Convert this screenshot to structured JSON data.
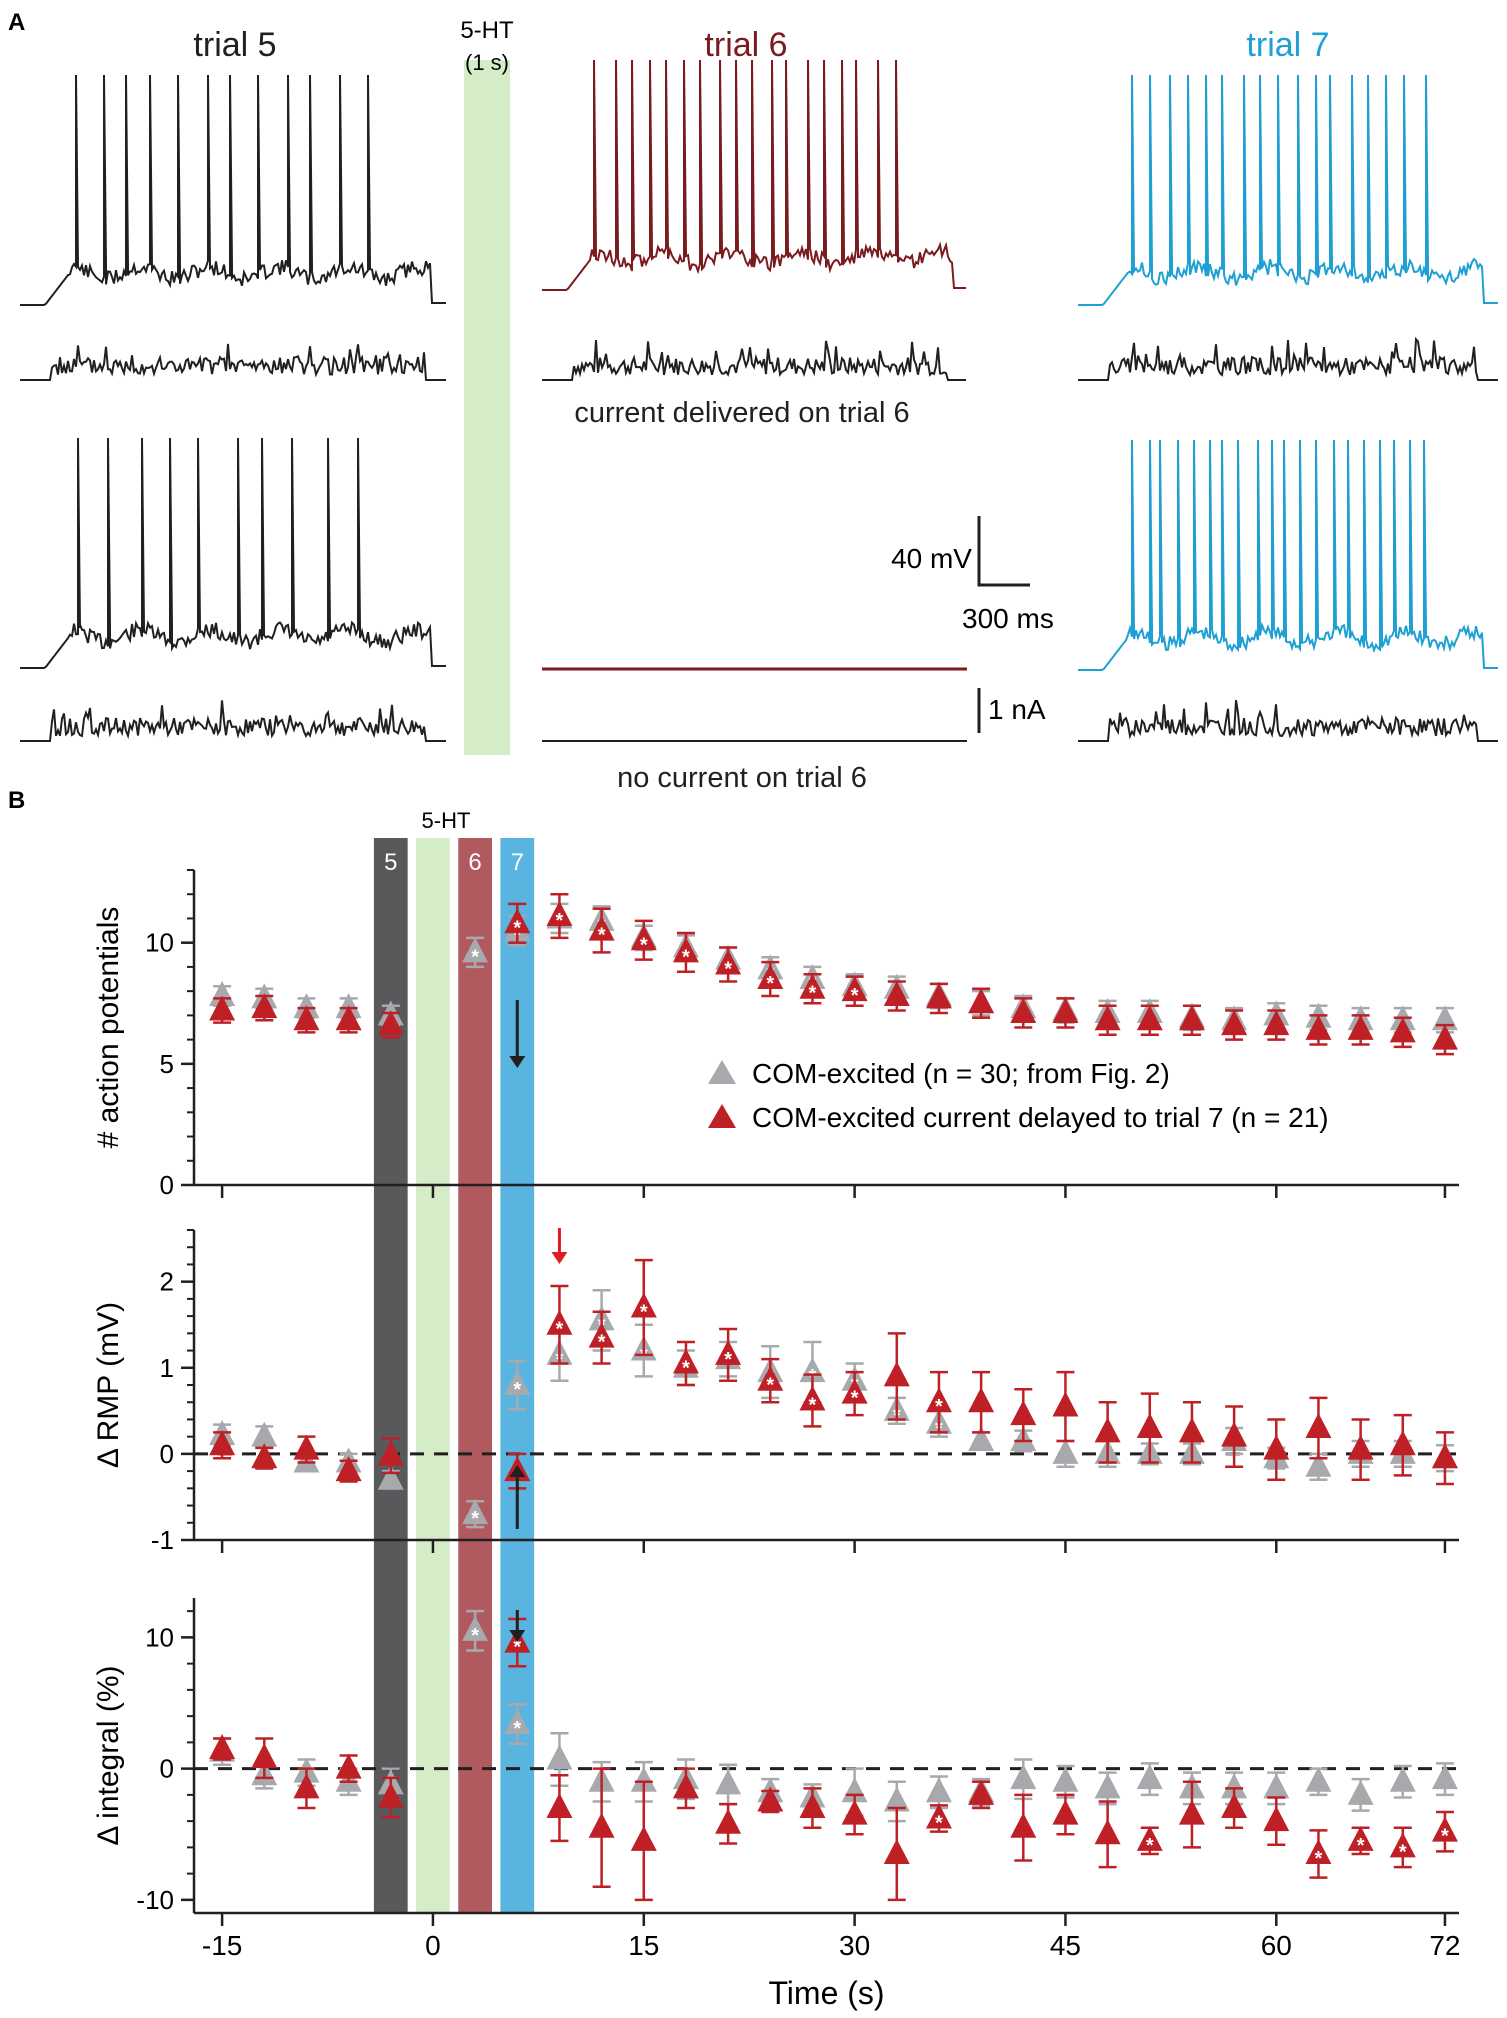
{
  "panelA": {
    "label": "A",
    "trial5_title": "trial 5",
    "trial6_title": "trial 6",
    "trial7_title": "trial 7",
    "drug_label": "5-HT",
    "drug_duration": "(1 s)",
    "caption_top": "current delivered on trial 6",
    "caption_bottom": "no current on trial 6",
    "scale_voltage": "40 mV",
    "scale_time": "300 ms",
    "scale_current": "1 nA",
    "spike_counts": {
      "trial5_top": 12,
      "trial6_top": 18,
      "trial7_top": 17,
      "trial5_bottom": 10,
      "trial7_bottom": 20
    },
    "colors": {
      "trial5": "#231f20",
      "trial6": "#7b1a1f",
      "trial7": "#1ea0d4",
      "drug": "#d4ecc8",
      "current": "#231f20"
    }
  },
  "panelB": {
    "label": "B",
    "drug_label": "5-HT",
    "bar_labels": [
      "5",
      "6",
      "7"
    ],
    "colors": {
      "grey_series": "#a7a9ac",
      "red_series": "#be2026",
      "bar5": "#58595b",
      "bar6": "#b05a60",
      "bar7": "#5ab4e0",
      "drug": "#d4ecc8",
      "red_arrow": "#e21b23",
      "black_arrow": "#231f20"
    }
  },
  "chart_data": [
    {
      "type": "scatter",
      "title": "",
      "xlabel": "Time (s)",
      "ylabel": "# action potentials",
      "xlim": [
        -17,
        73
      ],
      "ylim": [
        0,
        13
      ],
      "yticks": [
        0,
        5,
        10
      ],
      "xticks": [
        -15,
        0,
        15,
        30,
        45,
        60,
        72
      ],
      "legend": [
        "COM-excited (n = 30; from Fig. 2)",
        "COM-excited current delayed to trial 7 (n = 21)"
      ],
      "legend_position": "center-right",
      "series": [
        {
          "name": "COM-excited (n = 30; from Fig. 2)",
          "x": [
            -15,
            -12,
            -9,
            -6,
            -3,
            3,
            6,
            9,
            12,
            15,
            18,
            21,
            24,
            27,
            30,
            33,
            36,
            39,
            42,
            45,
            48,
            51,
            54,
            57,
            60,
            63,
            66,
            69,
            72
          ],
          "y": [
            7.8,
            7.7,
            7.3,
            7.3,
            7.0,
            9.6,
            10.5,
            11.0,
            10.9,
            10.2,
            9.8,
            9.3,
            8.9,
            8.5,
            8.2,
            8.1,
            7.8,
            7.5,
            7.3,
            7.2,
            7.1,
            7.1,
            6.9,
            6.8,
            7.0,
            6.9,
            6.8,
            6.8,
            6.8
          ],
          "err": [
            0.4,
            0.4,
            0.4,
            0.4,
            0.4,
            0.6,
            0.6,
            0.6,
            0.6,
            0.5,
            0.5,
            0.5,
            0.5,
            0.5,
            0.5,
            0.5,
            0.5,
            0.5,
            0.5,
            0.5,
            0.5,
            0.5,
            0.5,
            0.5,
            0.5,
            0.5,
            0.5,
            0.5,
            0.5
          ],
          "significant_x": [
            3,
            6,
            9,
            12,
            15,
            18,
            21,
            24,
            27,
            30
          ]
        },
        {
          "name": "COM-excited current delayed to trial 7 (n = 21)",
          "x": [
            -15,
            -12,
            -9,
            -6,
            -3,
            6,
            9,
            12,
            15,
            18,
            21,
            24,
            27,
            30,
            33,
            36,
            39,
            42,
            45,
            48,
            51,
            54,
            57,
            60,
            63,
            66,
            69,
            72
          ],
          "y": [
            7.2,
            7.3,
            6.8,
            6.8,
            6.6,
            10.8,
            11.1,
            10.5,
            10.1,
            9.6,
            9.1,
            8.5,
            8.1,
            8.0,
            7.8,
            7.7,
            7.5,
            7.1,
            7.1,
            6.8,
            6.8,
            6.8,
            6.6,
            6.6,
            6.4,
            6.4,
            6.3,
            6.0
          ],
          "err": [
            0.5,
            0.5,
            0.5,
            0.5,
            0.5,
            0.8,
            0.9,
            0.9,
            0.8,
            0.8,
            0.7,
            0.7,
            0.6,
            0.6,
            0.6,
            0.6,
            0.6,
            0.6,
            0.6,
            0.6,
            0.6,
            0.6,
            0.6,
            0.6,
            0.6,
            0.6,
            0.6,
            0.6
          ],
          "significant_x": [
            6,
            9,
            12,
            15,
            18,
            21,
            24,
            27,
            30
          ]
        }
      ]
    },
    {
      "type": "scatter",
      "title": "",
      "xlabel": "Time (s)",
      "ylabel": "Δ RMP (mV)",
      "xlim": [
        -17,
        73
      ],
      "ylim": [
        -1,
        2.6
      ],
      "yticks": [
        -1,
        0,
        1,
        2
      ],
      "xticks": [
        -15,
        0,
        15,
        30,
        45,
        60,
        72
      ],
      "reference_line": 0,
      "series": [
        {
          "name": "COM-excited (n = 30; from Fig. 2)",
          "x": [
            -15,
            -12,
            -9,
            -6,
            -3,
            3,
            6,
            9,
            12,
            15,
            18,
            21,
            24,
            27,
            30,
            33,
            36,
            39,
            42,
            45,
            48,
            51,
            54,
            57,
            60,
            63,
            66,
            69,
            72
          ],
          "y": [
            0.22,
            0.2,
            -0.1,
            -0.1,
            -0.3,
            -0.7,
            0.8,
            1.15,
            1.55,
            1.2,
            1.0,
            1.1,
            0.95,
            0.95,
            0.85,
            0.5,
            0.35,
            0.15,
            0.15,
            0.0,
            0.0,
            0.0,
            0.0,
            0.15,
            -0.05,
            -0.15,
            0.0,
            0.0,
            -0.05
          ],
          "err": [
            0.12,
            0.12,
            0.1,
            0.1,
            0.1,
            0.15,
            0.28,
            0.3,
            0.35,
            0.3,
            0.2,
            0.2,
            0.3,
            0.35,
            0.2,
            0.15,
            0.15,
            0.1,
            0.12,
            0.15,
            0.15,
            0.12,
            0.12,
            0.15,
            0.12,
            0.15,
            0.15,
            0.15,
            0.15
          ],
          "significant_x": [
            3,
            6,
            9,
            12,
            15,
            18,
            21,
            24,
            27,
            30,
            33,
            36
          ]
        },
        {
          "name": "COM-excited current delayed to trial 7 (n = 21)",
          "x": [
            -15,
            -12,
            -9,
            -6,
            -3,
            6,
            9,
            12,
            15,
            18,
            21,
            24,
            27,
            30,
            33,
            36,
            39,
            42,
            45,
            48,
            51,
            54,
            57,
            60,
            63,
            66,
            69,
            72
          ],
          "y": [
            0.1,
            -0.05,
            0.05,
            -0.2,
            -0.02,
            -0.2,
            1.5,
            1.35,
            1.7,
            1.05,
            1.15,
            0.85,
            0.62,
            0.7,
            0.9,
            0.6,
            0.6,
            0.45,
            0.55,
            0.25,
            0.3,
            0.25,
            0.2,
            0.05,
            0.3,
            0.05,
            0.1,
            -0.05
          ],
          "err": [
            0.15,
            0.12,
            0.15,
            0.12,
            0.2,
            0.2,
            0.45,
            0.3,
            0.55,
            0.25,
            0.3,
            0.25,
            0.3,
            0.25,
            0.5,
            0.35,
            0.35,
            0.3,
            0.4,
            0.35,
            0.4,
            0.35,
            0.35,
            0.35,
            0.35,
            0.35,
            0.35,
            0.3
          ],
          "significant_x": [
            9,
            12,
            15,
            18,
            21,
            24,
            27,
            30,
            36
          ]
        }
      ]
    },
    {
      "type": "scatter",
      "title": "",
      "xlabel": "Time (s)",
      "ylabel": "Δ integral (%)",
      "xlim": [
        -17,
        73
      ],
      "ylim": [
        -11,
        13
      ],
      "yticks": [
        -10,
        0,
        10
      ],
      "xticks": [
        -15,
        0,
        15,
        30,
        45,
        60,
        72
      ],
      "reference_line": 0,
      "series": [
        {
          "name": "COM-excited (n = 30; from Fig. 2)",
          "x": [
            -15,
            -12,
            -9,
            -6,
            -3,
            3,
            6,
            9,
            12,
            15,
            18,
            21,
            24,
            27,
            30,
            33,
            36,
            39,
            42,
            45,
            48,
            51,
            54,
            57,
            60,
            63,
            66,
            69,
            72
          ],
          "y": [
            1.3,
            -0.5,
            -0.3,
            -1.0,
            -1.2,
            10.5,
            3.4,
            0.7,
            -1.0,
            -1.0,
            -0.8,
            -1.2,
            -1.8,
            -2.2,
            -1.8,
            -2.5,
            -1.8,
            -1.8,
            -0.8,
            -1.0,
            -1.5,
            -0.8,
            -1.5,
            -1.5,
            -1.5,
            -1.0,
            -2.0,
            -1.0,
            -0.8
          ],
          "err": [
            1.0,
            1.0,
            1.0,
            1.0,
            1.2,
            1.5,
            1.5,
            2.0,
            1.5,
            1.5,
            1.5,
            1.5,
            1.0,
            1.0,
            1.8,
            1.5,
            1.2,
            1.0,
            1.5,
            1.2,
            1.2,
            1.2,
            1.2,
            1.2,
            1.2,
            1.0,
            1.2,
            1.2,
            1.2
          ],
          "significant_x": [
            3,
            6
          ]
        },
        {
          "name": "COM-excited current delayed to trial 7 (n = 21)",
          "x": [
            -15,
            -12,
            -9,
            -6,
            -3,
            6,
            9,
            12,
            15,
            18,
            21,
            24,
            27,
            30,
            33,
            36,
            39,
            42,
            45,
            48,
            51,
            54,
            57,
            60,
            63,
            66,
            69,
            72
          ],
          "y": [
            1.5,
            0.8,
            -1.5,
            0.0,
            -2.2,
            9.6,
            -3.0,
            -4.5,
            -5.5,
            -1.5,
            -4.2,
            -2.5,
            -3.0,
            -3.5,
            -6.5,
            -3.8,
            -2.0,
            -4.5,
            -3.5,
            -5.0,
            -5.5,
            -3.5,
            -3.0,
            -4.0,
            -6.5,
            -5.5,
            -6.0,
            -4.8
          ],
          "err": [
            0.8,
            1.5,
            1.5,
            1.0,
            1.5,
            1.8,
            2.5,
            4.5,
            4.5,
            1.5,
            1.5,
            0.8,
            1.5,
            1.5,
            3.5,
            1.0,
            1.0,
            2.5,
            1.5,
            2.5,
            1.0,
            2.5,
            1.5,
            1.8,
            1.8,
            1.0,
            1.5,
            1.5
          ],
          "significant_x": [
            6,
            36,
            51,
            63,
            66,
            69,
            72
          ]
        }
      ]
    }
  ]
}
